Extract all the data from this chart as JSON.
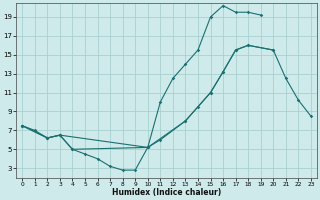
{
  "xlabel": "Humidex (Indice chaleur)",
  "bg_color": "#ceeaea",
  "grid_color": "#a8d0d0",
  "line_color": "#1a7070",
  "xlim": [
    -0.5,
    23.5
  ],
  "ylim": [
    2.0,
    20.5
  ],
  "xticks": [
    0,
    1,
    2,
    3,
    4,
    5,
    6,
    7,
    8,
    9,
    10,
    11,
    12,
    13,
    14,
    15,
    16,
    17,
    18,
    19,
    20,
    21,
    22,
    23
  ],
  "yticks": [
    3,
    5,
    7,
    9,
    11,
    13,
    15,
    17,
    19
  ],
  "s1x": [
    0,
    1,
    2,
    3,
    4,
    5,
    6,
    7,
    8,
    9,
    10,
    11,
    12,
    13,
    14,
    15,
    16,
    17,
    18,
    19
  ],
  "s1y": [
    7.5,
    7.0,
    6.2,
    6.5,
    5.0,
    4.5,
    4.0,
    3.2,
    2.8,
    2.8,
    5.2,
    10.0,
    12.5,
    14.0,
    15.5,
    19.0,
    20.2,
    19.5,
    19.5,
    19.2
  ],
  "s2x": [
    0,
    2,
    3,
    4,
    10,
    11,
    13,
    14,
    15,
    16,
    17,
    18,
    20
  ],
  "s2y": [
    7.5,
    6.2,
    6.5,
    5.0,
    5.2,
    6.0,
    8.0,
    9.5,
    11.0,
    13.2,
    15.5,
    16.0,
    15.5
  ],
  "s3x": [
    0,
    2,
    3,
    10,
    13,
    15,
    16,
    17,
    18,
    20,
    21,
    22,
    23
  ],
  "s3y": [
    7.5,
    6.2,
    6.5,
    5.2,
    8.0,
    11.0,
    13.2,
    15.5,
    16.0,
    15.5,
    12.5,
    10.2,
    8.5
  ]
}
